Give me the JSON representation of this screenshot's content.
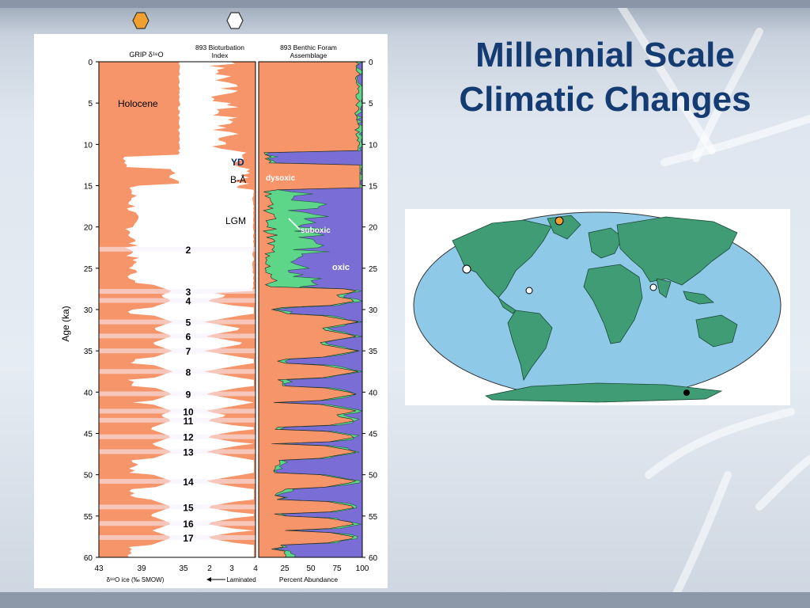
{
  "slide": {
    "title_line1": "Millennial Scale",
    "title_line2": "Climatic Changes"
  },
  "top_markers": [
    {
      "name": "orange-hexagon-marker",
      "color": "#f0a030"
    },
    {
      "name": "white-hexagon-marker",
      "color": "#ffffff"
    }
  ],
  "chart": {
    "panel1_header": "GRIP  δ¹⁸O",
    "panel2_header_line1": "893 Bioturbation",
    "panel2_header_line2": "Index",
    "panel3_header_line1": "893 Benthic Foram",
    "panel3_header_line2": "Assemblage",
    "y_axis_label": "Age (ka)",
    "age_ticks": [
      "0",
      "5",
      "10",
      "15",
      "20",
      "25",
      "30",
      "35",
      "40",
      "45",
      "50",
      "55",
      "60"
    ],
    "panel1_xticks": [
      "43",
      "39",
      "35"
    ],
    "panel2_xticks": [
      "2",
      "3",
      "4"
    ],
    "panel3_xticks": [
      "25",
      "50",
      "75",
      "100"
    ],
    "panel1_xlabel": "δ¹⁸O ice (‰ SMOW)",
    "panel2_xlabel": "Laminated",
    "panel3_xlabel": "Percent Abundance",
    "labels": {
      "holocene": "Holocene",
      "yd": "YD",
      "ba": "B-Å",
      "lgm": "LGM",
      "dysoxic": "dysoxic",
      "suboxic": "suboxic",
      "oxic": "oxic"
    },
    "interstadials": [
      {
        "num": "2",
        "age": 22.7
      },
      {
        "num": "3",
        "age": 27.8
      },
      {
        "num": "4",
        "age": 28.9
      },
      {
        "num": "5",
        "age": 31.5
      },
      {
        "num": "6",
        "age": 33.2
      },
      {
        "num": "7",
        "age": 35.0
      },
      {
        "num": "8",
        "age": 37.5
      },
      {
        "num": "9",
        "age": 40.2
      },
      {
        "num": "10",
        "age": 42.3
      },
      {
        "num": "11",
        "age": 43.4
      },
      {
        "num": "12",
        "age": 45.4
      },
      {
        "num": "13",
        "age": 47.2
      },
      {
        "num": "14",
        "age": 50.8
      },
      {
        "num": "15",
        "age": 53.9
      },
      {
        "num": "16",
        "age": 55.9
      },
      {
        "num": "17",
        "age": 57.6
      }
    ],
    "colors": {
      "salmon": "#f6946a",
      "purple": "#7a6ed6",
      "green": "#5dd68a",
      "white_band": "#f5eefb"
    }
  },
  "map": {
    "site_colors": {
      "ocean": "#8ec9e8",
      "land": "#3f9c75",
      "orange_site": "#f0a030",
      "white_site": "#ffffff",
      "black_site": "#000000"
    }
  }
}
